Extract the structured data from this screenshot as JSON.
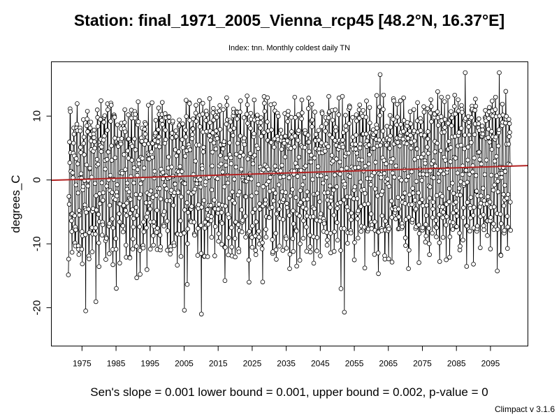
{
  "chart_data": {
    "type": "line",
    "title": "Station: final_1971_2005_Vienna_rcp45 [48.2°N, 16.37°E]",
    "subtitle": "Index: tnn. Monthly coldest daily TN",
    "xlabel": "",
    "ylabel": "degrees_C",
    "xlim": [
      1966,
      2106
    ],
    "ylim": [
      -26,
      18.5
    ],
    "x_ticks": [
      "1975",
      "1985",
      "1995",
      "2005",
      "2015",
      "2025",
      "2035",
      "2045",
      "2055",
      "2065",
      "2075",
      "2085",
      "2095"
    ],
    "x_tick_values": [
      1975,
      1985,
      1995,
      2005,
      2015,
      2025,
      2035,
      2045,
      2055,
      2065,
      2075,
      2085,
      2095
    ],
    "y_ticks": [
      "-20",
      "-10",
      "0",
      "10"
    ],
    "y_tick_values": [
      -20,
      -10,
      0,
      10
    ],
    "series_style": "monthly values from Jan 1971 to Dec 2100 drawn as connected points (open circles)",
    "series_annual_mean": {
      "x": [
        1971,
        1976,
        1981,
        1986,
        1991,
        1996,
        2001,
        2006,
        2011,
        2016,
        2021,
        2026,
        2031,
        2036,
        2041,
        2046,
        2051,
        2056,
        2061,
        2066,
        2071,
        2076,
        2081,
        2086,
        2091,
        2096,
        2100
      ],
      "y": [
        0.2,
        0.4,
        0.5,
        0.6,
        0.7,
        0.8,
        0.8,
        0.9,
        1.0,
        1.0,
        1.1,
        1.2,
        1.2,
        1.3,
        1.4,
        1.4,
        1.5,
        1.6,
        1.6,
        1.7,
        1.8,
        1.8,
        1.9,
        2.0,
        2.0,
        2.1,
        2.2
      ]
    },
    "series_seasonal_amplitude": {
      "summer_peak_range": [
        8,
        16.8
      ],
      "winter_trough_range": [
        -24.7,
        -2
      ]
    },
    "extremes": [
      {
        "x": 2005,
        "y": -24.7
      },
      {
        "x": 1976,
        "y": -20.5
      },
      {
        "x": 2005,
        "y": -20.4
      },
      {
        "x": 2010,
        "y": -21.0
      },
      {
        "x": 2052,
        "y": -20.7
      },
      {
        "x": 2097,
        "y": 16.8
      },
      {
        "x": 2087,
        "y": 16.8
      },
      {
        "x": 2062,
        "y": 16.5
      }
    ],
    "trend_line": {
      "x": [
        1966,
        2106
      ],
      "y": [
        -0.05,
        2.25
      ],
      "color": "#b22222"
    },
    "series_color": "#000000",
    "grid": false,
    "footer": "Sen's slope = 0.001   lower bound = 0.001,   upper bound = 0.002,   p-value = 0",
    "credit": "Climpact v 3.1.6"
  }
}
